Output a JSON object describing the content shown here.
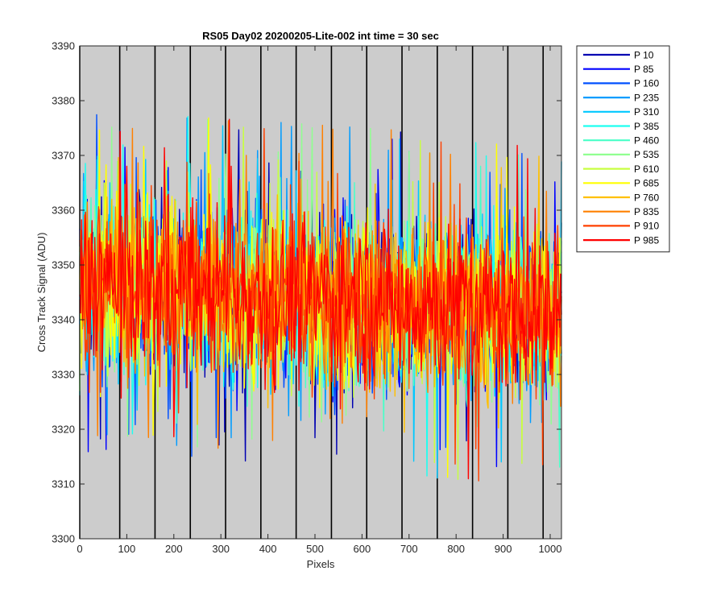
{
  "chart_data": {
    "type": "line",
    "title": "RS05 Day02 20200205-Lite-002 int time = 30 sec",
    "xlabel": "Pixels",
    "ylabel": "Cross Track Signal (ADU)",
    "xlim": [
      0,
      1024
    ],
    "ylim": [
      3300,
      3390
    ],
    "xticks": [
      0,
      100,
      200,
      300,
      400,
      500,
      600,
      700,
      800,
      900,
      1000
    ],
    "yticks": [
      3300,
      3310,
      3320,
      3330,
      3340,
      3350,
      3360,
      3370,
      3380,
      3390
    ],
    "background_color": "#cccccc",
    "grid": false,
    "vertical_lines_x": [
      0,
      85,
      160,
      235,
      310,
      385,
      460,
      535,
      610,
      685,
      760,
      835,
      910,
      985
    ],
    "legend_position": "outside-top-right",
    "noise_summary": {
      "mean_start": 3347,
      "mean_end": 3341,
      "typical_min": 3318,
      "typical_max": 3372,
      "observed_extremes": [
        3307,
        3381
      ]
    },
    "series": [
      {
        "name": "P 10",
        "color": "#0000b2"
      },
      {
        "name": "P 85",
        "color": "#0000ff"
      },
      {
        "name": "P 160",
        "color": "#0050ff"
      },
      {
        "name": "P 235",
        "color": "#009cff"
      },
      {
        "name": "P 310",
        "color": "#00c8ff"
      },
      {
        "name": "P 385",
        "color": "#1dfff0"
      },
      {
        "name": "P 460",
        "color": "#49ffc8"
      },
      {
        "name": "P 535",
        "color": "#90ff90"
      },
      {
        "name": "P 610",
        "color": "#c8ff40"
      },
      {
        "name": "P 685",
        "color": "#ffff00"
      },
      {
        "name": "P 760",
        "color": "#ffc000"
      },
      {
        "name": "P 835",
        "color": "#ff8000"
      },
      {
        "name": "P 910",
        "color": "#ff4000"
      },
      {
        "name": "P 985",
        "color": "#ff0000"
      }
    ]
  }
}
